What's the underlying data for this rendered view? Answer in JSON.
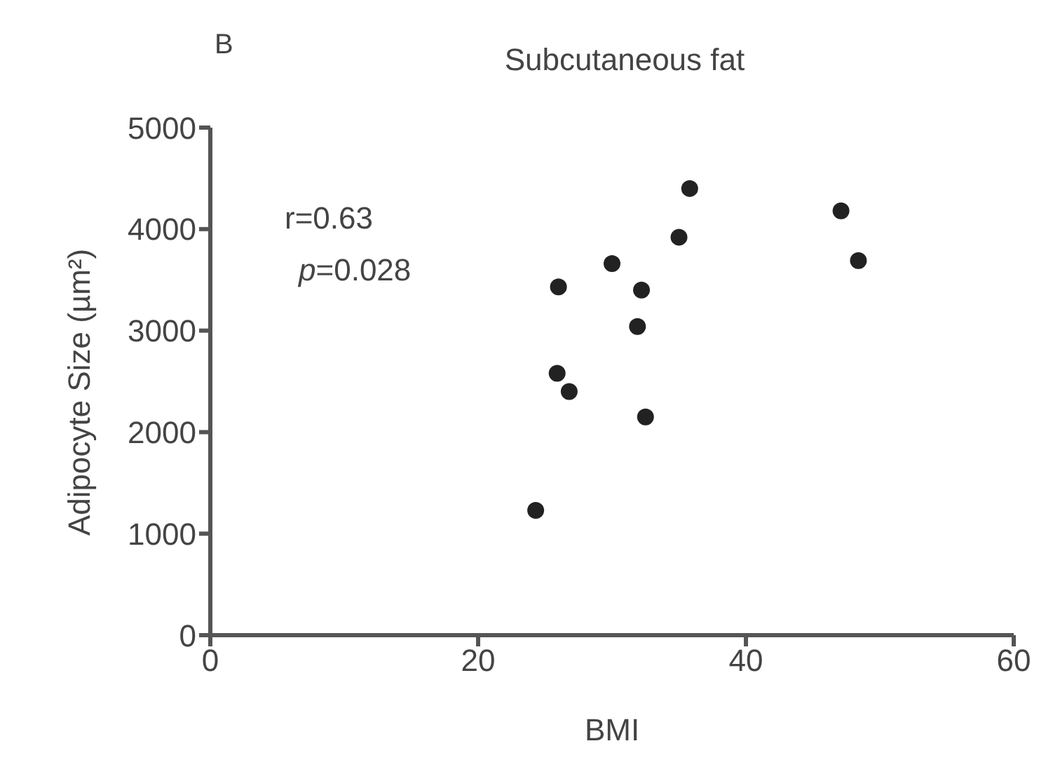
{
  "chart_data": {
    "type": "scatter",
    "title": "Subcutaneous fat",
    "xlabel": "BMI",
    "ylabel": "Adipocyte Size (µm²)",
    "annotations": [
      "B",
      "r=0.63",
      "p=0.028"
    ],
    "series": [
      {
        "color": "#222222",
        "x": [
          24.3,
          26.0,
          25.9,
          26.8,
          30.0,
          32.2,
          31.9,
          32.5,
          35.0,
          35.8,
          47.1,
          48.4
        ],
        "values": [
          1230,
          3430,
          2580,
          2400,
          3660,
          3400,
          3040,
          2150,
          3920,
          4400,
          4180,
          3690
        ]
      }
    ],
    "xlim": [
      0,
      60
    ],
    "xticks": [
      0,
      20,
      40,
      60
    ],
    "ylim": [
      0,
      5000
    ],
    "yticks": [
      0,
      1000,
      2000,
      3000,
      4000,
      5000
    ],
    "grid": false,
    "legend": false,
    "marker": "circle"
  }
}
